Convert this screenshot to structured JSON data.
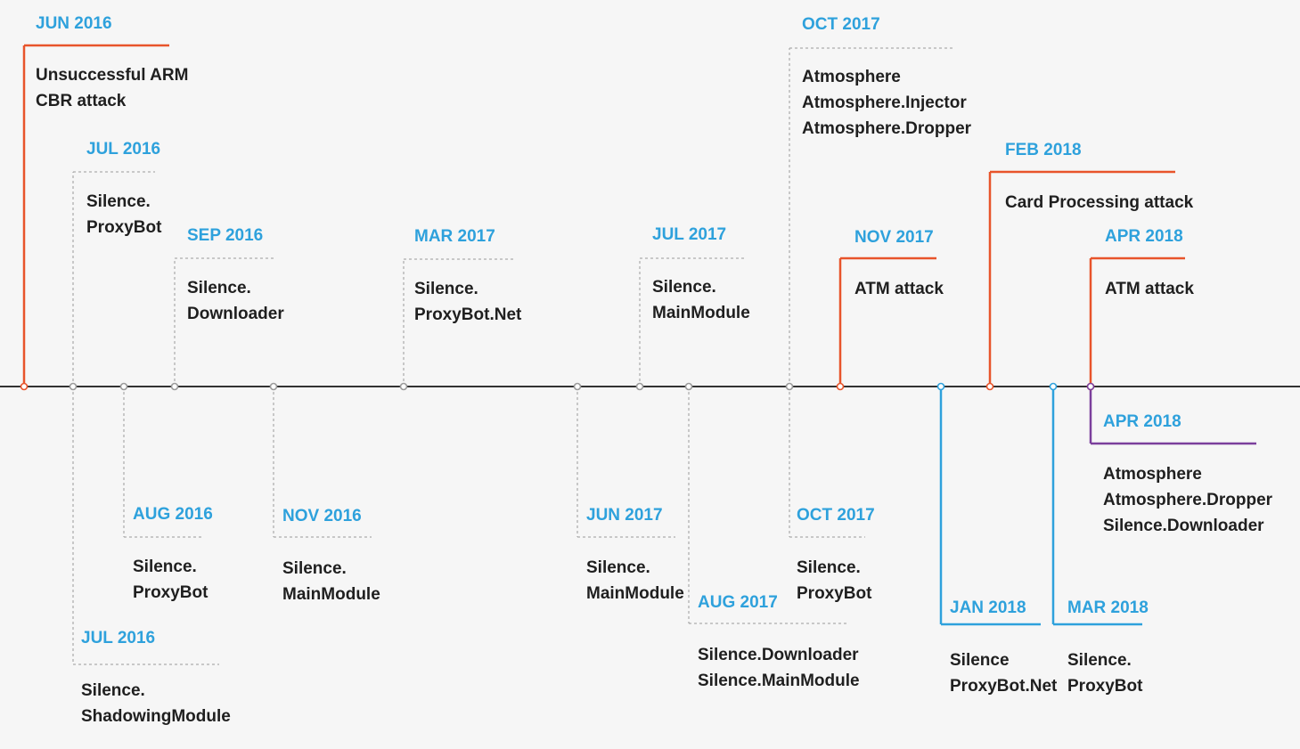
{
  "timeline": {
    "colors": {
      "attack": "#e8542b",
      "tool": "#9a9a9a",
      "proxy": "#2ea1dc",
      "mixed": "#7b3f9c",
      "axis": "#333333",
      "date_text": "#2ea1dc",
      "desc_text": "#1f1f1f"
    },
    "events": [
      {
        "id": "e1",
        "kind": "attack",
        "date": "JUN 2016",
        "desc": "Unsuccessful ARM\nCBR attack"
      },
      {
        "id": "e2",
        "kind": "tool",
        "date": "JUL 2016",
        "desc": "Silence.\nProxyBot"
      },
      {
        "id": "e3",
        "kind": "tool",
        "date": "SEP 2016",
        "desc": "Silence.\nDownloader"
      },
      {
        "id": "e4",
        "kind": "tool",
        "date": "MAR 2017",
        "desc": "Silence.\nProxyBot.Net"
      },
      {
        "id": "e5",
        "kind": "tool",
        "date": "JUL 2017",
        "desc": "Silence.\nMainModule"
      },
      {
        "id": "e6",
        "kind": "tool",
        "date": "OCT 2017",
        "desc": "Atmosphere\nAtmosphere.Injector\nAtmosphere.Dropper"
      },
      {
        "id": "e7",
        "kind": "attack",
        "date": "NOV 2017",
        "desc": "ATM attack"
      },
      {
        "id": "e8",
        "kind": "attack",
        "date": "FEB 2018",
        "desc": "Card Processing attack"
      },
      {
        "id": "e9",
        "kind": "attack",
        "date": "APR 2018",
        "desc": "ATM attack"
      },
      {
        "id": "e10",
        "kind": "tool",
        "date": "AUG 2016",
        "desc": "Silence.\nProxyBot"
      },
      {
        "id": "e11",
        "kind": "tool",
        "date": "JUL 2016",
        "desc": "Silence.\nShadowingModule"
      },
      {
        "id": "e12",
        "kind": "tool",
        "date": "NOV 2016",
        "desc": "Silence.\nMainModule"
      },
      {
        "id": "e13",
        "kind": "tool",
        "date": "JUN 2017",
        "desc": "Silence.\nMainModule"
      },
      {
        "id": "e14",
        "kind": "tool",
        "date": "AUG 2017",
        "desc": "Silence.Downloader\nSilence.MainModule"
      },
      {
        "id": "e15",
        "kind": "tool",
        "date": "OCT 2017",
        "desc": "Silence.\nProxyBot"
      },
      {
        "id": "e16",
        "kind": "proxy",
        "date": "JAN 2018",
        "desc": "Silence\nProxyBot.Net"
      },
      {
        "id": "e17",
        "kind": "proxy",
        "date": "MAR 2018",
        "desc": "Silence.\nProxyBot"
      },
      {
        "id": "e18",
        "kind": "mixed",
        "date": "APR 2018",
        "desc": "Atmosphere\nAtmosphere.Dropper\nSilence.Downloader"
      }
    ]
  }
}
